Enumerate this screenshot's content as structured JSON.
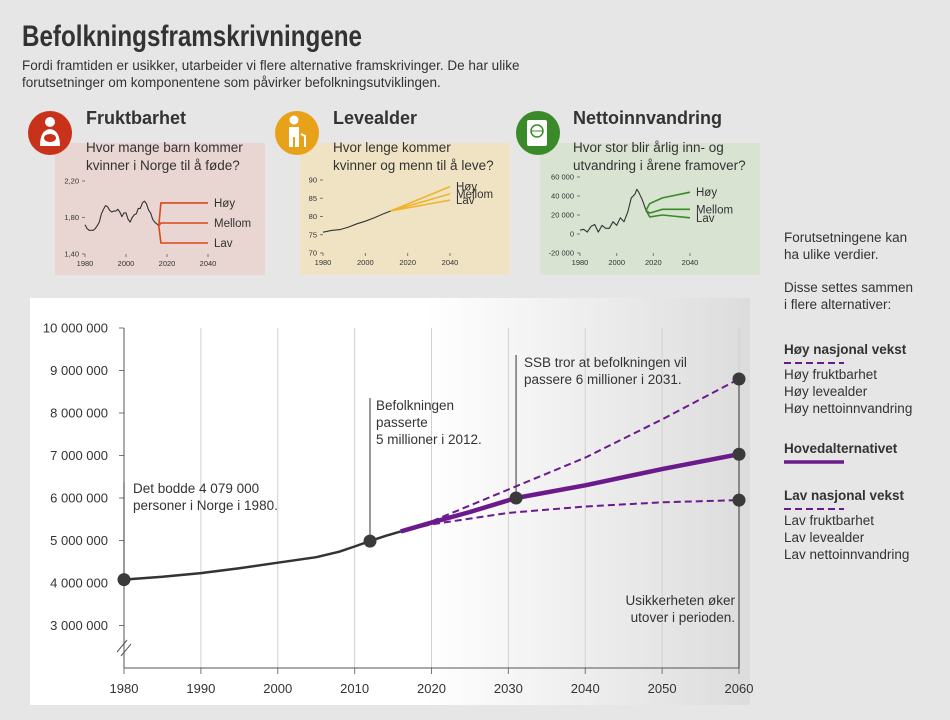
{
  "header": {
    "title": "Befolkningsframskrivningene",
    "subtitle": [
      "Fordi framtiden er usikker, utarbeider vi flere alternative framskrivinger. De har ulike",
      "forutsetninger om komponentene som påvirker befolkningsutviklingen."
    ]
  },
  "chart_data": [
    {
      "type": "line",
      "title": "Fruktbarhet",
      "question": [
        "Hvor mange barn kommer",
        "kvinner i Norge til å føde?"
      ],
      "xlim": [
        1980,
        2040
      ],
      "xticks": [
        1980,
        2000,
        2020,
        2040
      ],
      "ylim": [
        1.4,
        2.2
      ],
      "yticks": [
        {
          "value": 1.4,
          "label": "1,40"
        },
        {
          "value": 1.8,
          "label": "1,80"
        },
        {
          "value": 2.2,
          "label": "2,20"
        }
      ],
      "legend": "line-end",
      "series": [
        {
          "color": "#333333",
          "x": [
            1980,
            1981,
            1982,
            1983,
            1984,
            1985,
            1986,
            1987,
            1988,
            1989,
            1990,
            1991,
            1992,
            1993,
            1994,
            1995,
            1996,
            1997,
            1998,
            1999,
            2000,
            2001,
            2002,
            2003,
            2004,
            2005,
            2006,
            2007,
            2008,
            2009,
            2010,
            2011,
            2012,
            2013,
            2014,
            2015,
            2016
          ],
          "values": [
            1.72,
            1.68,
            1.66,
            1.66,
            1.66,
            1.68,
            1.71,
            1.75,
            1.84,
            1.89,
            1.93,
            1.92,
            1.88,
            1.86,
            1.87,
            1.87,
            1.89,
            1.86,
            1.81,
            1.85,
            1.85,
            1.78,
            1.75,
            1.8,
            1.83,
            1.84,
            1.9,
            1.9,
            1.96,
            1.98,
            1.95,
            1.88,
            1.85,
            1.78,
            1.75,
            1.73,
            1.71
          ]
        },
        {
          "name": "Høy",
          "color": "#d9481c",
          "x": [
            2016,
            2017,
            2040
          ],
          "values": [
            1.71,
            1.96,
            1.96
          ]
        },
        {
          "name": "Mellom",
          "color": "#d9481c",
          "x": [
            2016,
            2017,
            2040
          ],
          "values": [
            1.71,
            1.74,
            1.74
          ]
        },
        {
          "name": "Lav",
          "color": "#d9481c",
          "x": [
            2016,
            2017,
            2040
          ],
          "values": [
            1.71,
            1.52,
            1.52
          ]
        }
      ]
    },
    {
      "type": "line",
      "title": "Levealder",
      "question": [
        "Hvor lenge kommer",
        "kvinner og menn til å leve?"
      ],
      "xlim": [
        1980,
        2040
      ],
      "xticks": [
        1980,
        2000,
        2020,
        2040
      ],
      "ylim": [
        70,
        90
      ],
      "yticks": [
        70,
        75,
        80,
        85,
        90
      ],
      "legend": "line-end",
      "series": [
        {
          "color": "#333333",
          "x": [
            1980,
            1984,
            1988,
            1992,
            1996,
            2000,
            2004,
            2008,
            2012,
            2016
          ],
          "values": [
            75.7,
            76.2,
            76.4,
            77.1,
            78.0,
            78.7,
            79.6,
            80.6,
            81.5,
            82.4
          ]
        },
        {
          "name": "Høy",
          "color": "#f0b429",
          "x": [
            2012,
            2040
          ],
          "values": [
            81.5,
            88.2
          ]
        },
        {
          "name": "Mellom",
          "color": "#f0b429",
          "x": [
            2012,
            2040
          ],
          "values": [
            81.5,
            86.2
          ]
        },
        {
          "name": "Lav",
          "color": "#f0b429",
          "x": [
            2012,
            2040
          ],
          "values": [
            81.5,
            84.5
          ]
        }
      ]
    },
    {
      "type": "line",
      "title": "Nettoinnvandring",
      "question": [
        "Hvor stor blir årlig inn- og",
        "utvandring i årene framover?"
      ],
      "xlim": [
        1980,
        2040
      ],
      "xticks": [
        1980,
        2000,
        2020,
        2040
      ],
      "ylim": [
        -20000,
        60000
      ],
      "yticks": [
        {
          "value": -20000,
          "label": "-20 000"
        },
        0,
        {
          "value": 20000,
          "label": "20 000"
        },
        {
          "value": 40000,
          "label": "40 000"
        },
        {
          "value": 60000,
          "label": "60 000"
        }
      ],
      "legend": "line-end",
      "series": [
        {
          "color": "#333333",
          "x": [
            1980,
            1982,
            1984,
            1986,
            1988,
            1990,
            1992,
            1994,
            1996,
            1998,
            2000,
            2002,
            2004,
            2006,
            2008,
            2010,
            2011,
            2012,
            2014,
            2016
          ],
          "values": [
            4000,
            5000,
            2000,
            8000,
            10000,
            2000,
            9000,
            6000,
            6000,
            13000,
            9000,
            17000,
            13000,
            23000,
            38000,
            42000,
            47000,
            44000,
            36000,
            25000
          ]
        },
        {
          "name": "Høy",
          "color": "#3a8a2a",
          "x": [
            2016,
            2018,
            2025,
            2040
          ],
          "values": [
            25000,
            32000,
            38000,
            44000
          ]
        },
        {
          "name": "Mellom",
          "color": "#3a8a2a",
          "x": [
            2016,
            2018,
            2025,
            2040
          ],
          "values": [
            25000,
            22000,
            26000,
            26000
          ]
        },
        {
          "name": "Lav",
          "color": "#3a8a2a",
          "x": [
            2016,
            2018,
            2025,
            2040
          ],
          "values": [
            25000,
            18000,
            20000,
            17000
          ]
        }
      ]
    },
    {
      "type": "line",
      "grid": true,
      "legend": "right",
      "xlim": [
        1980,
        2060
      ],
      "xticks": [
        1980,
        1990,
        2000,
        2010,
        2020,
        2030,
        2040,
        2050,
        2060
      ],
      "ylim": [
        2000000,
        10000000
      ],
      "yticks": [
        {
          "value": 3000000,
          "label": "3 000 000"
        },
        {
          "value": 4000000,
          "label": "4 000 000"
        },
        {
          "value": 5000000,
          "label": "5 000 000"
        },
        {
          "value": 6000000,
          "label": "6 000 000"
        },
        {
          "value": 7000000,
          "label": "7 000 000"
        },
        {
          "value": 8000000,
          "label": "8 000 000"
        },
        {
          "value": 9000000,
          "label": "9 000 000"
        },
        {
          "value": 10000000,
          "label": "10 000 000"
        }
      ],
      "series": [
        {
          "color": "#333333",
          "x": [
            1980,
            1985,
            1990,
            1995,
            2000,
            2005,
            2008,
            2010,
            2012,
            2014,
            2016
          ],
          "values": [
            4079000,
            4146000,
            4233000,
            4348000,
            4478000,
            4606000,
            4737000,
            4858000,
            4986000,
            5109000,
            5214000
          ]
        },
        {
          "name": "Høy nasjonal vekst",
          "color": "#6b1a8c",
          "dashed": true,
          "end_marker": true,
          "x": [
            2016,
            2020,
            2030,
            2040,
            2050,
            2060
          ],
          "values": [
            5214000,
            5450000,
            6200000,
            6950000,
            7850000,
            8800000
          ],
          "details": [
            "Høy fruktbarhet",
            "Høy levealder",
            "Høy nettoinnvandring"
          ]
        },
        {
          "name": "Hovedalternativet",
          "color": "#6b1a8c",
          "end_marker": true,
          "x": [
            2016,
            2020,
            2025,
            2031,
            2040,
            2050,
            2060
          ],
          "values": [
            5214000,
            5420000,
            5670000,
            6000000,
            6300000,
            6680000,
            7030000
          ]
        },
        {
          "name": "Lav nasjonal vekst",
          "color": "#6b1a8c",
          "dashed": true,
          "end_marker": true,
          "x": [
            2016,
            2020,
            2030,
            2040,
            2050,
            2060
          ],
          "values": [
            5214000,
            5380000,
            5650000,
            5800000,
            5900000,
            5950000
          ],
          "details": [
            "Lav fruktbarhet",
            "Lav levealder",
            "Lav nettoinnvandring"
          ]
        }
      ],
      "annotations": [
        {
          "text": [
            "Det bodde 4 079 000",
            "personer i Norge i 1980."
          ],
          "x": 1980,
          "y": 4079000
        },
        {
          "text": [
            "Befolkningen",
            "passerte",
            "5 millioner i 2012."
          ],
          "x": 2012,
          "y": 4986000
        },
        {
          "text": [
            "SSB tror at befolkningen vil",
            "passere 6 millioner i 2031."
          ],
          "x": 2031,
          "y": 6000000
        },
        {
          "text": [
            "Usikkerheten øker",
            "utover i perioden."
          ],
          "x": 2060
        }
      ]
    }
  ],
  "sidebar": {
    "intro": [
      "Forutsetningene kan",
      "ha ulike verdier.",
      "Disse settes sammen",
      "i flere alternativer:"
    ]
  }
}
